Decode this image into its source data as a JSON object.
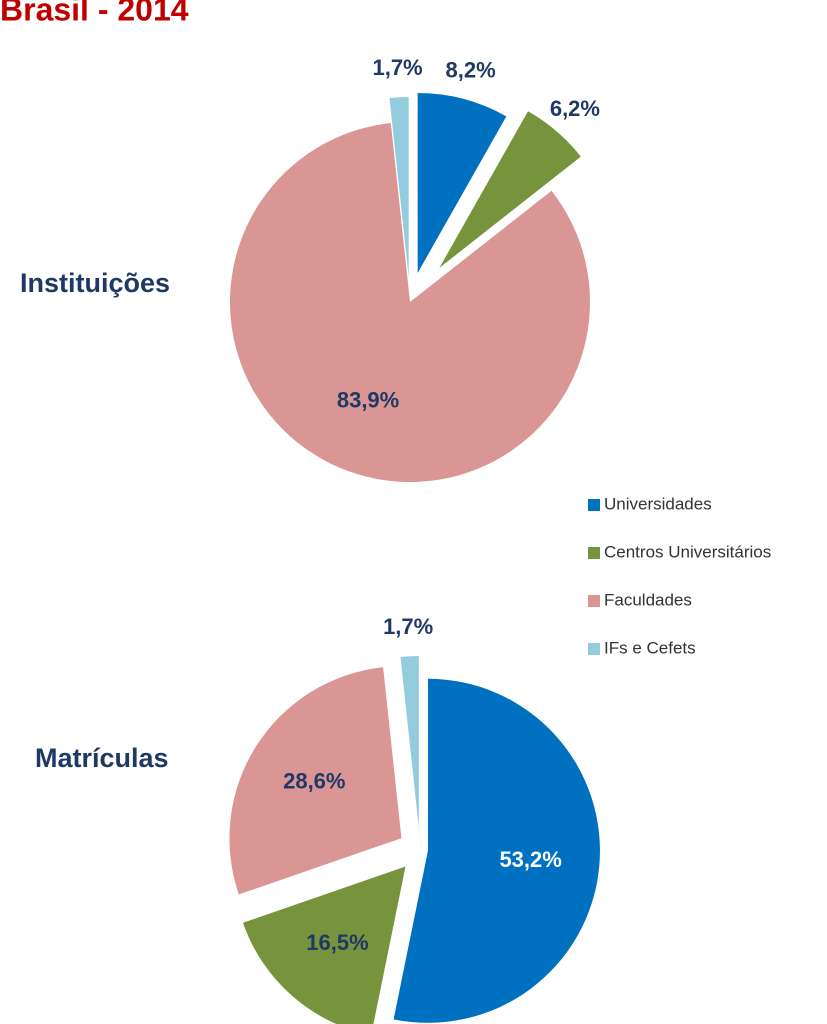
{
  "title": "Brasil - 2014",
  "chart_data": [
    {
      "type": "pie",
      "title": "Instituições",
      "categories": [
        "Universidades",
        "Centros Universitários",
        "Faculdades",
        "IFs e Cefets"
      ],
      "values": [
        8.2,
        6.2,
        83.9,
        1.7
      ],
      "value_labels": [
        "8,2%",
        "6,2%",
        "83,9%",
        "1,7%"
      ],
      "colors": [
        "#0070c0",
        "#77933c",
        "#d99694",
        "#93cddd"
      ],
      "legend": "right"
    },
    {
      "type": "pie",
      "title": "Matrículas",
      "categories": [
        "Universidades",
        "Centros Universitários",
        "Faculdades",
        "IFs e Cefets"
      ],
      "values": [
        53.2,
        16.5,
        28.6,
        1.7
      ],
      "value_labels": [
        "53,2%",
        "16,5%",
        "28,6%",
        "1,7%"
      ],
      "colors": [
        "#0070c0",
        "#77933c",
        "#d99694",
        "#93cddd"
      ]
    }
  ]
}
